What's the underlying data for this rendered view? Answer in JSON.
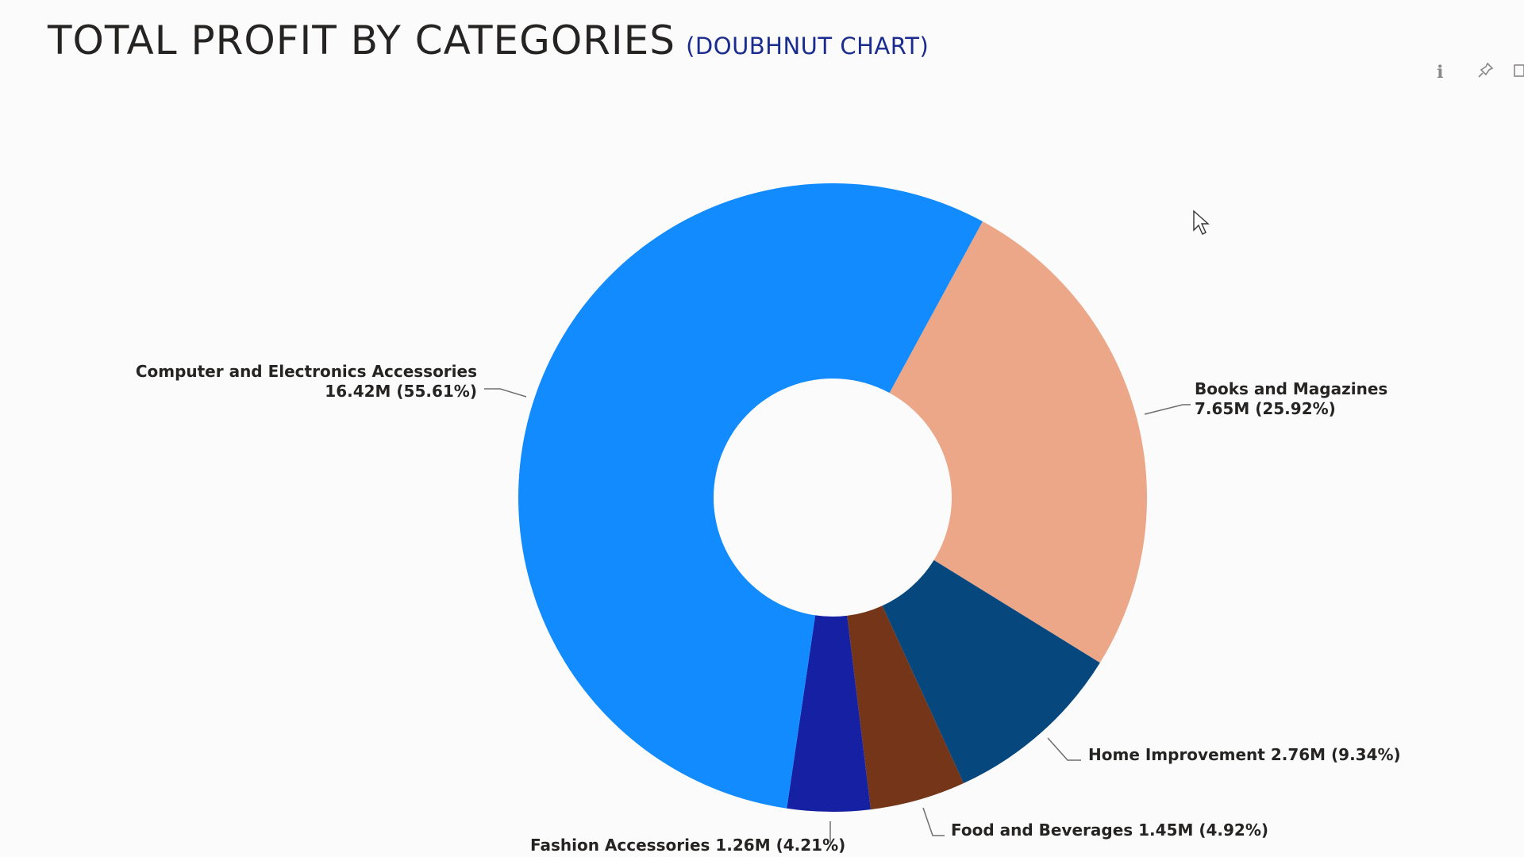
{
  "header": {
    "title": "TOTAL PROFIT BY CATEGORIES",
    "subtitle": "(DOUBHNUT CHART)"
  },
  "toolbar": {
    "info_icon": "info-icon",
    "pin_icon": "pin-icon",
    "copy_icon": "copy-icon"
  },
  "chart_data": {
    "type": "doughnut",
    "title": "TOTAL PROFIT BY CATEGORIES",
    "legend": "none",
    "data_labels": "outside",
    "slices": [
      {
        "label": "Books and Magazines",
        "value": 7.65,
        "percent": 25.92,
        "value_label": "7.65M (25.92%)",
        "color": "#eba787"
      },
      {
        "label": "Home Improvement",
        "value": 2.76,
        "percent": 9.34,
        "value_label": "2.76M (9.34%)",
        "color": "#06477e"
      },
      {
        "label": "Food and Beverages",
        "value": 1.45,
        "percent": 4.92,
        "value_label": "1.45M (4.92%)",
        "color": "#743519"
      },
      {
        "label": "Fashion Accessories",
        "value": 1.26,
        "percent": 4.21,
        "value_label": "1.26M (4.21%)",
        "color": "#1520a2"
      },
      {
        "label": "Computer and Electronics Accessories",
        "value": 16.42,
        "percent": 55.61,
        "value_label": "16.42M (55.61%)",
        "color": "#118bfd"
      }
    ]
  }
}
